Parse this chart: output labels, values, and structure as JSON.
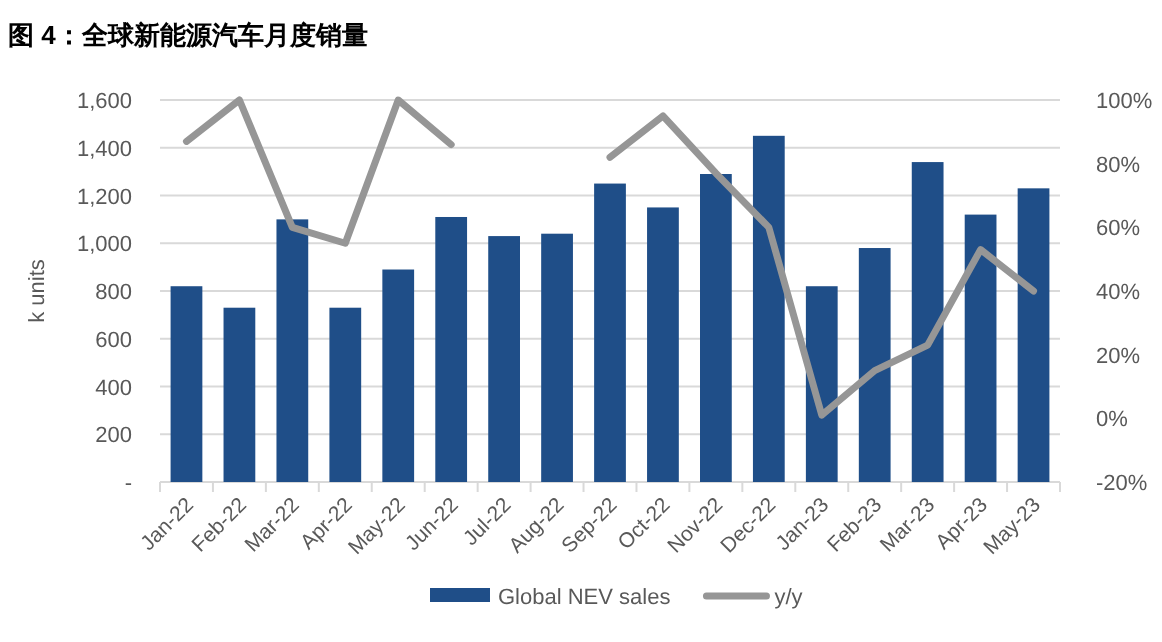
{
  "chart_data": {
    "type": "bar",
    "title": "图 4：全球新能源汽车月度销量",
    "ylabel": "k units",
    "categories": [
      "Jan-22",
      "Feb-22",
      "Mar-22",
      "Apr-22",
      "May-22",
      "Jun-22",
      "Jul-22",
      "Aug-22",
      "Sep-22",
      "Oct-22",
      "Nov-22",
      "Dec-22",
      "Jan-23",
      "Feb-23",
      "Mar-23",
      "Apr-23",
      "May-23"
    ],
    "series": [
      {
        "name": "Global NEV sales",
        "color": "#1f4e88",
        "values": [
          820,
          730,
          1100,
          730,
          890,
          1110,
          1030,
          1040,
          1250,
          1150,
          1290,
          1450,
          820,
          980,
          1340,
          1120,
          1230
        ]
      },
      {
        "name": "y/y",
        "type": "line",
        "axis": "y2",
        "color": "#969696",
        "values": [
          87,
          100,
          60,
          55,
          100,
          86,
          null,
          null,
          82,
          95,
          77,
          60,
          1,
          15,
          23,
          53,
          40
        ]
      }
    ],
    "ylim": [
      0,
      1600
    ],
    "yticks": [
      {
        "value": 0,
        "label": "-"
      },
      200,
      400,
      600,
      800,
      {
        "value": 1000,
        "label": "1,000"
      },
      {
        "value": 1200,
        "label": "1,200"
      },
      {
        "value": 1400,
        "label": "1,400"
      },
      {
        "value": 1600,
        "label": "1,600"
      }
    ],
    "y2lim": [
      -20,
      100
    ],
    "y2ticks": [
      {
        "value": -20,
        "label": "-20%"
      },
      {
        "value": 0,
        "label": "0%"
      },
      {
        "value": 20,
        "label": "20%"
      },
      {
        "value": 40,
        "label": "40%"
      },
      {
        "value": 60,
        "label": "60%"
      },
      {
        "value": 80,
        "label": "80%"
      },
      {
        "value": 100,
        "label": "100%"
      }
    ],
    "grid": "y",
    "legend": "bottom",
    "line_style": "solid",
    "marker": "none"
  }
}
